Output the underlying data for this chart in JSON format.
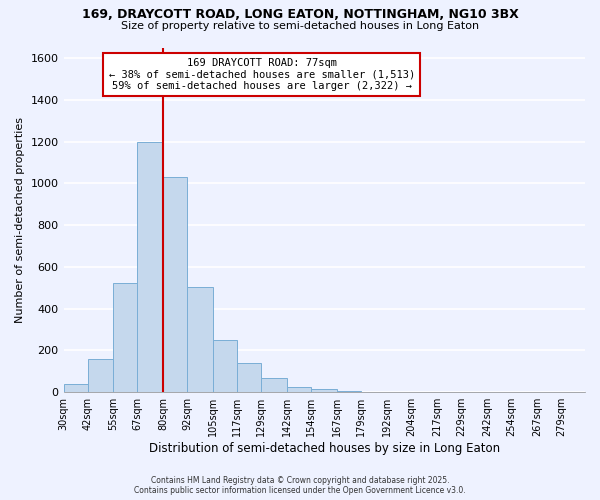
{
  "title": "169, DRAYCOTT ROAD, LONG EATON, NOTTINGHAM, NG10 3BX",
  "subtitle": "Size of property relative to semi-detached houses in Long Eaton",
  "xlabel": "Distribution of semi-detached houses by size in Long Eaton",
  "ylabel": "Number of semi-detached properties",
  "bin_labels": [
    "30sqm",
    "42sqm",
    "55sqm",
    "67sqm",
    "80sqm",
    "92sqm",
    "105sqm",
    "117sqm",
    "129sqm",
    "142sqm",
    "154sqm",
    "167sqm",
    "179sqm",
    "192sqm",
    "204sqm",
    "217sqm",
    "229sqm",
    "242sqm",
    "254sqm",
    "267sqm",
    "279sqm"
  ],
  "bin_edges": [
    30,
    42,
    55,
    67,
    80,
    92,
    105,
    117,
    129,
    142,
    154,
    167,
    179,
    192,
    204,
    217,
    229,
    242,
    254,
    267,
    279
  ],
  "bar_heights": [
    40,
    160,
    525,
    1200,
    1030,
    505,
    248,
    138,
    68,
    25,
    15,
    8,
    0,
    0,
    0,
    0,
    0,
    0,
    0,
    0
  ],
  "bar_color": "#c5d8ed",
  "bar_edge_color": "#7aaed6",
  "vline_color": "#cc0000",
  "vline_x": 80,
  "annotation_title": "169 DRAYCOTT ROAD: 77sqm",
  "annotation_line1": "← 38% of semi-detached houses are smaller (1,513)",
  "annotation_line2": "59% of semi-detached houses are larger (2,322) →",
  "annotation_box_color": "#ffffff",
  "annotation_box_edge": "#cc0000",
  "ylim": [
    0,
    1650
  ],
  "yticks": [
    0,
    200,
    400,
    600,
    800,
    1000,
    1200,
    1400,
    1600
  ],
  "background_color": "#eef2ff",
  "grid_color": "#ffffff",
  "footer_line1": "Contains HM Land Registry data © Crown copyright and database right 2025.",
  "footer_line2": "Contains public sector information licensed under the Open Government Licence v3.0."
}
